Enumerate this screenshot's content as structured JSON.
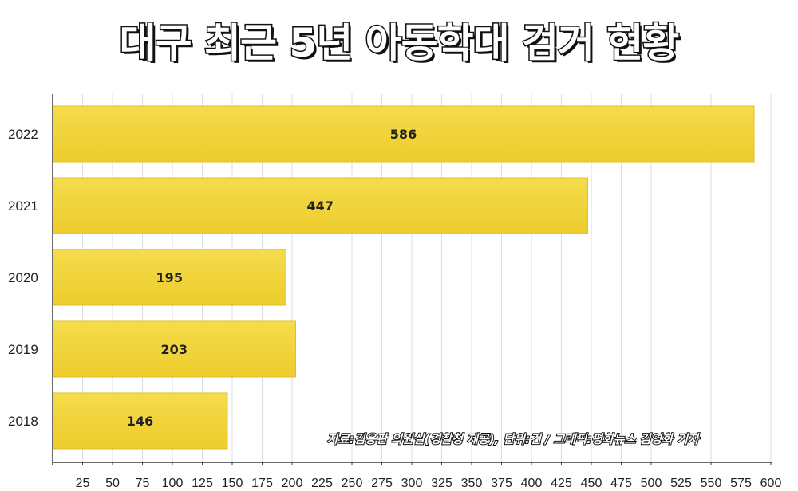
{
  "chart_data": {
    "type": "bar",
    "orientation": "horizontal",
    "title": "대구 최근 5년 아동학대 검거 현황",
    "categories": [
      "2022",
      "2021",
      "2020",
      "2019",
      "2018"
    ],
    "values": [
      586,
      447,
      195,
      203,
      146
    ],
    "data_labels": [
      "586",
      "447",
      "195",
      "203",
      "146"
    ],
    "x_ticks": [
      "25",
      "50",
      "75",
      "100",
      "125",
      "150",
      "175",
      "200",
      "225",
      "250",
      "275",
      "300",
      "325",
      "350",
      "375",
      "400",
      "425",
      "450",
      "475",
      "500",
      "525",
      "550",
      "575",
      "600"
    ],
    "xlim": [
      0,
      600
    ],
    "grid": "vertical",
    "bar_color": "#f2d33a",
    "xlabel": "",
    "ylabel": "",
    "source_note": "자료:김용판 의원실(경찰청 제공), 단위:건 / 그래픽:평화뉴스 김영화 기자"
  }
}
